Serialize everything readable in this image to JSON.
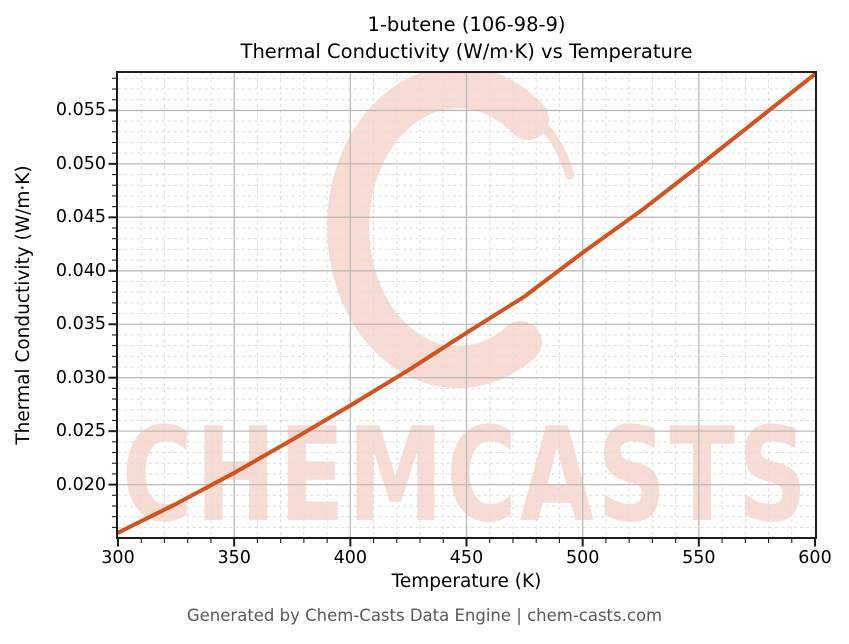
{
  "title": {
    "line1": "1-butene (106-98-9)",
    "line2": "Thermal Conductivity (W/m·K) vs Temperature"
  },
  "footer": "Generated by Chem-Casts Data Engine | chem-casts.com",
  "watermark": {
    "text": "CHEMCASTS",
    "logo": "brush-circle-c"
  },
  "colors": {
    "curve": "#d4521e",
    "watermark": "#f8dbd2",
    "major_grid": "#bbbbbb",
    "minor_grid": "#dcdcdc",
    "axis": "#1c1c1c",
    "footer_text": "#595959"
  },
  "chart_data": {
    "type": "line",
    "title": "1-butene (106-98-9) Thermal Conductivity (W/m·K) vs Temperature",
    "xlabel": "Temperature (K)",
    "ylabel": "Thermal Conductivity (W/m·K)",
    "x": [
      300,
      325,
      350,
      375,
      400,
      425,
      450,
      475,
      500,
      525,
      550,
      575,
      600
    ],
    "series": [
      {
        "name": "Thermal Conductivity (W/m·K)",
        "values": [
          0.0155,
          0.0182,
          0.0211,
          0.0242,
          0.0274,
          0.0307,
          0.0342,
          0.0376,
          0.0417,
          0.0456,
          0.0498,
          0.0541,
          0.0584
        ]
      }
    ],
    "xlim": [
      300,
      600
    ],
    "ylim": [
      0.0151,
      0.0585
    ],
    "xticks": [
      300,
      350,
      400,
      450,
      500,
      550,
      600
    ],
    "xtick_labels": [
      "300",
      "350",
      "400",
      "450",
      "500",
      "550",
      "600"
    ],
    "yticks": [
      0.02,
      0.025,
      0.03,
      0.035,
      0.04,
      0.045,
      0.05,
      0.055
    ],
    "ytick_labels": [
      "0.020",
      "0.025",
      "0.030",
      "0.035",
      "0.040",
      "0.045",
      "0.050",
      "0.055"
    ],
    "x_minor_step": 10,
    "y_minor_step": 0.001,
    "grid": "major solid, minor dashed",
    "legend": "none"
  }
}
